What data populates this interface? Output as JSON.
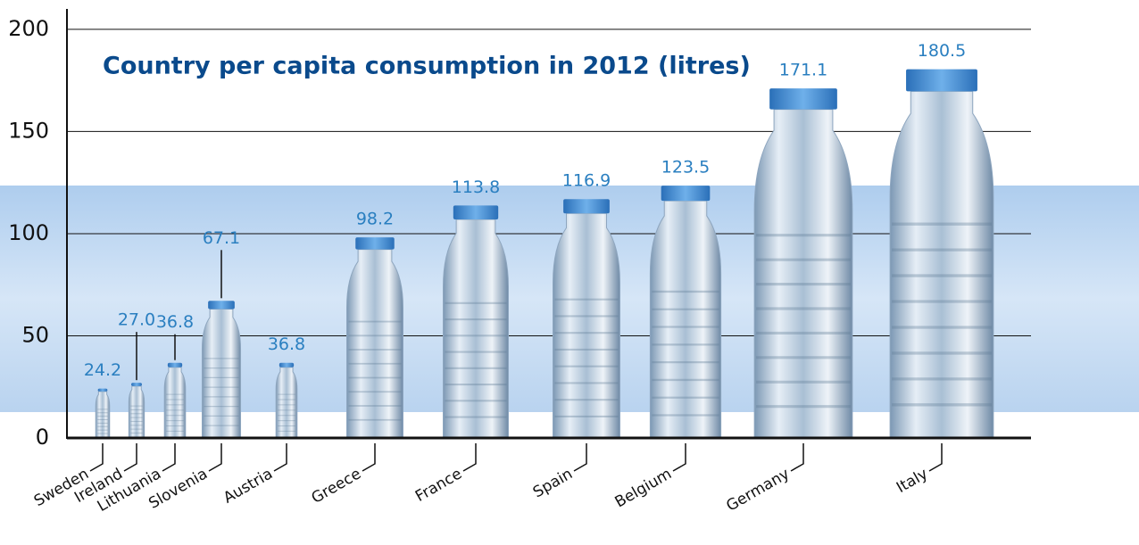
{
  "chart_data": {
    "type": "bottle",
    "title": "Country per capita consumption in 2012 (litres)",
    "categories": [
      "Sweden",
      "Ireland",
      "Lithuania",
      "Slovenia",
      "Austria",
      "Greece",
      "France",
      "Spain",
      "Belgium",
      "Germany",
      "Italy"
    ],
    "values": [
      24.2,
      27.0,
      36.8,
      67.1,
      36.8,
      98.2,
      113.8,
      116.9,
      123.5,
      171.1,
      180.5
    ],
    "value_labels": [
      "24.2",
      "27.0",
      "36.8",
      "67.1",
      "36.8",
      "98.2",
      "113.8",
      "116.9",
      "123.5",
      "171.1",
      "180.5"
    ],
    "color": "#3a8fd6",
    "ylim": [
      0,
      210
    ],
    "yticks": [
      0,
      50,
      100,
      150,
      200
    ],
    "grid": true
  }
}
